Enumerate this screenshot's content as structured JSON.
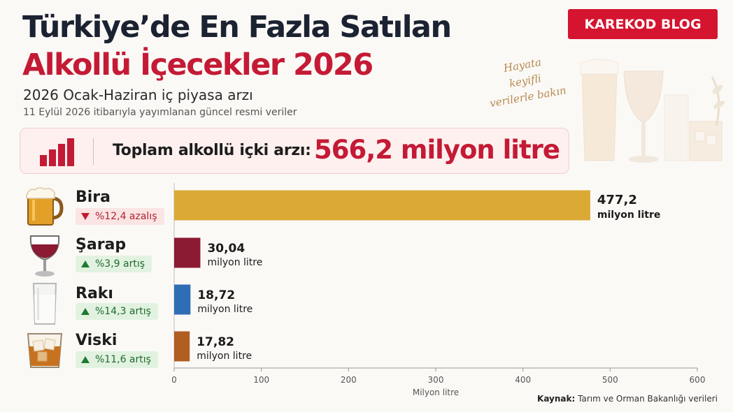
{
  "header": {
    "title_line1": "Türkiye’de En Fazla Satılan",
    "title_line2": "Alkollü İçecekler 2026",
    "subtitle": "2026 Ocak-Haziran iç piyasa arzı",
    "subtitle2": "11 Eylül 2026 itibarıyla yayımlanan güncel resmi veriler"
  },
  "brand": {
    "label": "KAREKOD BLOG",
    "color": "#d5142f"
  },
  "decoration": {
    "handwritten": [
      "Hayata",
      "keyifli",
      "verilerle bakın"
    ]
  },
  "total": {
    "label": "Toplam alkollü içki arzı:",
    "value": "566,2 milyon litre",
    "icon": "bar-chart-icon"
  },
  "rows": [
    {
      "name": "Bira",
      "change": "%12,4 azalış",
      "trend": "down",
      "icon": "beer-mug-icon"
    },
    {
      "name": "Şarap",
      "change": "%3,9 artış",
      "trend": "up",
      "icon": "wine-glass-icon"
    },
    {
      "name": "Rakı",
      "change": "%14,3 artış",
      "trend": "up",
      "icon": "raki-glass-icon"
    },
    {
      "name": "Viski",
      "change": "%11,6 artış",
      "trend": "up",
      "icon": "whisky-glass-icon"
    }
  ],
  "chart_data": {
    "type": "bar",
    "orientation": "horizontal",
    "categories": [
      "Bira",
      "Şarap",
      "Rakı",
      "Viski"
    ],
    "values": [
      477.2,
      30.04,
      18.72,
      17.82
    ],
    "value_labels": [
      "477,2",
      "30,04",
      "18,72",
      "17,82"
    ],
    "unit_label": "milyon litre",
    "colors": [
      "#dba935",
      "#8b1a33",
      "#2f6db5",
      "#b05e22"
    ],
    "xlabel": "Milyon litre",
    "xlim": [
      0,
      600
    ],
    "xticks": [
      0,
      100,
      200,
      300,
      400,
      500,
      600
    ],
    "grid": false
  },
  "source": {
    "label": "Kaynak:",
    "text": "Tarım ve Orman Bakanlığı verileri"
  }
}
